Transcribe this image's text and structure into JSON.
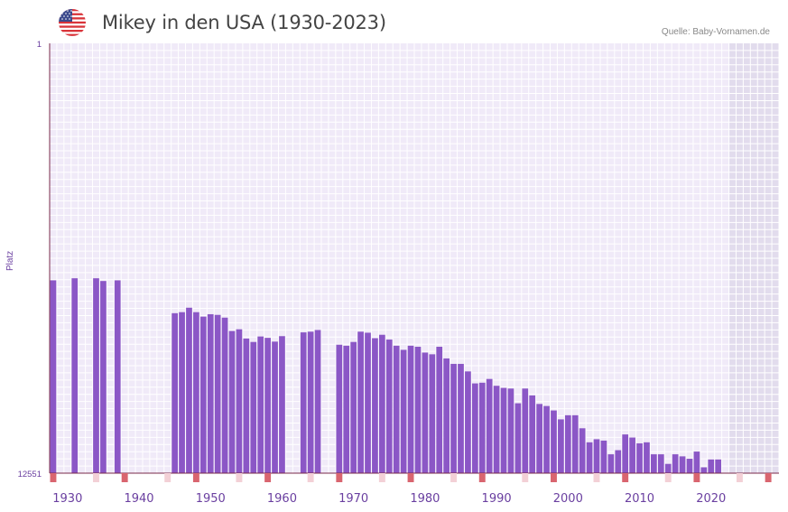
{
  "header": {
    "title": "Mikey in den USA (1930-2023)",
    "source": "Quelle: Baby-Vornamen.de"
  },
  "colors": {
    "bar": "#8b57c6",
    "plot_bg": "#f0eaf8",
    "future_bg": "#e2dced",
    "grid": "#ffffff",
    "axis": "#7a2a4a",
    "tick_red": "#d9656f",
    "tick_pink": "#f3d0d6",
    "axis_text": "#6a3fa0"
  },
  "chart_data": {
    "type": "bar",
    "title": "Mikey in den USA (1930-2023)",
    "xlabel": "",
    "ylabel": "Platz",
    "y_inverted": true,
    "ylim": [
      1,
      12551
    ],
    "y_ticks": [
      1,
      12551
    ],
    "x_range": [
      1928,
      2029
    ],
    "x_ticks": [
      1930,
      1940,
      1950,
      1960,
      1970,
      1980,
      1990,
      2000,
      2010,
      2020
    ],
    "future_shade_from": 2023,
    "x": [
      1928,
      1929,
      1930,
      1931,
      1932,
      1933,
      1934,
      1935,
      1936,
      1937,
      1938,
      1939,
      1940,
      1941,
      1942,
      1943,
      1944,
      1945,
      1946,
      1947,
      1948,
      1949,
      1950,
      1951,
      1952,
      1953,
      1954,
      1955,
      1956,
      1957,
      1958,
      1959,
      1960,
      1961,
      1962,
      1963,
      1964,
      1965,
      1966,
      1967,
      1968,
      1969,
      1970,
      1971,
      1972,
      1973,
      1974,
      1975,
      1976,
      1977,
      1978,
      1979,
      1980,
      1981,
      1982,
      1983,
      1984,
      1985,
      1986,
      1987,
      1988,
      1989,
      1990,
      1991,
      1992,
      1993,
      1994,
      1995,
      1996,
      1997,
      1998,
      1999,
      2000,
      2001,
      2002,
      2003,
      2004,
      2005,
      2006,
      2007,
      2008,
      2009,
      2010,
      2011,
      2012,
      2013,
      2014,
      2015,
      2016,
      2017,
      2018,
      2019,
      2020,
      2021,
      2022
    ],
    "values": [
      6920,
      null,
      null,
      6860,
      null,
      null,
      6860,
      6940,
      null,
      6920,
      null,
      null,
      null,
      null,
      null,
      null,
      null,
      7880,
      7850,
      7720,
      7850,
      7980,
      7910,
      7930,
      8010,
      8400,
      8350,
      8620,
      8720,
      8560,
      8600,
      8710,
      8550,
      null,
      null,
      8440,
      8420,
      8370,
      null,
      null,
      8800,
      8830,
      8720,
      8420,
      8450,
      8610,
      8510,
      8650,
      8830,
      8950,
      8830,
      8860,
      9030,
      9080,
      8860,
      9200,
      9360,
      9360,
      9580,
      9930,
      9910,
      9800,
      10000,
      10060,
      10080,
      10510,
      10080,
      10280,
      10530,
      10590,
      10720,
      10980,
      10860,
      10860,
      11240,
      11650,
      11560,
      11600,
      12000,
      11880,
      11420,
      11510,
      11680,
      11650,
      12000,
      12000,
      12280,
      12000,
      12060,
      12130,
      11920,
      12380,
      12150,
      12150,
      null
    ]
  }
}
